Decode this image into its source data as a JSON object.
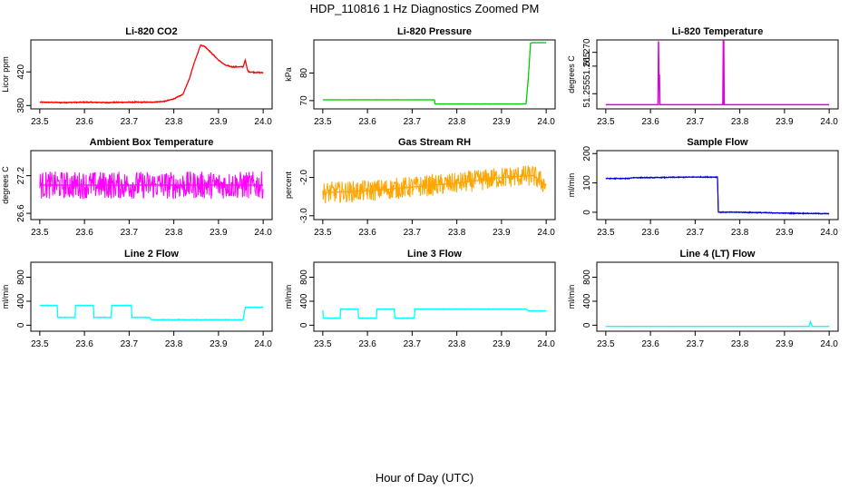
{
  "figure": {
    "title": "HDP_110816  1 Hz Diagnostics Zoomed PM",
    "xlabel": "Hour of Day (UTC)"
  },
  "chart_data": [
    {
      "id": "co2",
      "type": "line",
      "title": "Li-820 CO2",
      "ylabel": "Licor ppm",
      "xlim": [
        23.48,
        24.02
      ],
      "ylim": [
        376,
        458
      ],
      "xticks": [
        "23.5",
        "23.6",
        "23.7",
        "23.8",
        "23.9",
        "24.0"
      ],
      "yticks": [
        {
          "v": 380,
          "label": "380"
        },
        {
          "v": 420,
          "label": "420"
        }
      ],
      "color": "#ff0000",
      "noise": 0.8,
      "x": [
        23.5,
        23.55,
        23.6,
        23.65,
        23.7,
        23.75,
        23.78,
        23.8,
        23.82,
        23.835,
        23.845,
        23.86,
        23.87,
        23.885,
        23.9,
        23.915,
        23.93,
        23.94,
        23.955,
        23.96,
        23.965,
        23.968,
        23.97,
        23.98,
        24.0
      ],
      "y": [
        384,
        383.5,
        384,
        383.5,
        384,
        384,
        385,
        388,
        393,
        412,
        430,
        452,
        450,
        442,
        434,
        428,
        426,
        426,
        426,
        434,
        422,
        420,
        420,
        419.5,
        419
      ]
    },
    {
      "id": "pressure",
      "type": "line",
      "title": "Li-820 Pressure",
      "ylabel": "kPa",
      "xlim": [
        23.48,
        24.02
      ],
      "ylim": [
        67,
        92
      ],
      "xticks": [
        "23.5",
        "23.6",
        "23.7",
        "23.8",
        "23.9",
        "24.0"
      ],
      "yticks": [
        {
          "v": 70,
          "label": "70"
        },
        {
          "v": 80,
          "label": "80"
        }
      ],
      "color": "#00cc00",
      "noise": 0.05,
      "x": [
        23.5,
        23.75,
        23.751,
        23.955,
        23.96,
        23.965,
        23.97,
        24.0
      ],
      "y": [
        70.3,
        70.3,
        68.8,
        68.8,
        78,
        90.8,
        91,
        91
      ]
    },
    {
      "id": "temperature",
      "type": "line",
      "title": "Li-820 Temperature",
      "ylabel": "degrees C",
      "xlim": [
        23.48,
        24.02
      ],
      "ylim": [
        51.2495,
        51.2745
      ],
      "xticks": [
        "23.5",
        "23.6",
        "23.7",
        "23.8",
        "23.9",
        "24.0"
      ],
      "yticks": [
        {
          "v": 51.255,
          "label": "51.255"
        },
        {
          "v": 51.265,
          "label": "51.265"
        },
        {
          "v": 51.27,
          "label": "51.270"
        }
      ],
      "color": "#dd00dd",
      "noise": 0,
      "x": [
        23.5,
        23.617,
        23.618,
        23.619,
        23.62,
        23.621,
        23.622,
        23.623,
        23.762,
        23.763,
        23.764,
        23.765,
        24.0
      ],
      "y": [
        51.251,
        51.251,
        51.274,
        51.259,
        51.262,
        51.251,
        51.251,
        51.251,
        51.251,
        51.274,
        51.274,
        51.251,
        51.251
      ]
    },
    {
      "id": "ambient",
      "type": "line",
      "title": "Ambient Box Temperature",
      "ylabel": "degrees C",
      "xlim": [
        23.48,
        24.02
      ],
      "ylim": [
        26.5,
        27.6
      ],
      "xticks": [
        "23.5",
        "23.6",
        "23.7",
        "23.8",
        "23.9",
        "24.0"
      ],
      "yticks": [
        {
          "v": 26.6,
          "label": "26.6"
        },
        {
          "v": 27.2,
          "label": "27.2"
        }
      ],
      "color": "#ff00ff",
      "noise": 0.22,
      "x": [
        23.5,
        24.0
      ],
      "y": [
        27.05,
        27.05
      ]
    },
    {
      "id": "rh",
      "type": "line",
      "title": "Gas Stream RH",
      "ylabel": "percent",
      "xlim": [
        23.48,
        24.02
      ],
      "ylim": [
        -3.1,
        -1.3
      ],
      "xticks": [
        "23.5",
        "23.6",
        "23.7",
        "23.8",
        "23.9",
        "24.0"
      ],
      "yticks": [
        {
          "v": -3.0,
          "label": "-3.0"
        },
        {
          "v": -2.0,
          "label": "-2.0"
        }
      ],
      "color": "#ffa500",
      "noise": 0.28,
      "x": [
        23.5,
        23.6,
        23.7,
        23.8,
        23.9,
        23.97,
        24.0
      ],
      "y": [
        -2.4,
        -2.35,
        -2.25,
        -2.15,
        -2.0,
        -1.95,
        -2.2
      ]
    },
    {
      "id": "sample",
      "type": "line",
      "title": "Sample Flow",
      "ylabel": "ml/min",
      "xlim": [
        23.48,
        24.02
      ],
      "ylim": [
        -25,
        210
      ],
      "xticks": [
        "23.5",
        "23.6",
        "23.7",
        "23.8",
        "23.9",
        "24.0"
      ],
      "yticks": [
        {
          "v": 0,
          "label": "0"
        },
        {
          "v": 100,
          "label": "100"
        },
        {
          "v": 200,
          "label": "200"
        }
      ],
      "color": "#0000dd",
      "noise": 2,
      "x": [
        23.5,
        23.55,
        23.56,
        23.6,
        23.7,
        23.75,
        23.752,
        23.8,
        23.9,
        24.0
      ],
      "y": [
        115,
        115,
        118,
        118,
        120,
        120,
        0,
        0,
        -3,
        -5
      ]
    },
    {
      "id": "line2",
      "type": "line",
      "title": "Line 2 Flow",
      "ylabel": "ml/min",
      "xlim": [
        23.48,
        24.02
      ],
      "ylim": [
        -100,
        1050
      ],
      "xticks": [
        "23.5",
        "23.6",
        "23.7",
        "23.8",
        "23.9",
        "24.0"
      ],
      "yticks": [
        {
          "v": 0,
          "label": "0"
        },
        {
          "v": 400,
          "label": "400"
        },
        {
          "v": 800,
          "label": "800"
        }
      ],
      "color": "#00ffff",
      "noise": 8,
      "x": [
        23.5,
        23.539,
        23.54,
        23.579,
        23.58,
        23.62,
        23.621,
        23.66,
        23.661,
        23.705,
        23.706,
        23.745,
        23.75,
        23.955,
        23.96,
        24.0
      ],
      "y": [
        330,
        330,
        130,
        130,
        330,
        330,
        130,
        130,
        330,
        330,
        130,
        130,
        90,
        90,
        300,
        300
      ]
    },
    {
      "id": "line3",
      "type": "line",
      "title": "Line 3 Flow",
      "ylabel": "ml/min",
      "xlim": [
        23.48,
        24.02
      ],
      "ylim": [
        -100,
        1050
      ],
      "xticks": [
        "23.5",
        "23.6",
        "23.7",
        "23.8",
        "23.9",
        "24.0"
      ],
      "yticks": [
        {
          "v": 0,
          "label": "0"
        },
        {
          "v": 400,
          "label": "400"
        },
        {
          "v": 800,
          "label": "800"
        }
      ],
      "color": "#00ffff",
      "noise": 5,
      "x": [
        23.5,
        23.501,
        23.539,
        23.54,
        23.579,
        23.58,
        23.62,
        23.621,
        23.66,
        23.661,
        23.705,
        23.706,
        23.955,
        23.96,
        24.0
      ],
      "y": [
        250,
        120,
        120,
        270,
        270,
        120,
        120,
        270,
        270,
        120,
        120,
        270,
        270,
        240,
        240
      ]
    },
    {
      "id": "line4",
      "type": "line",
      "title": "Line 4 (LT) Flow",
      "ylabel": "ml/min",
      "xlim": [
        23.48,
        24.02
      ],
      "ylim": [
        -100,
        1050
      ],
      "xticks": [
        "23.5",
        "23.6",
        "23.7",
        "23.8",
        "23.9",
        "24.0"
      ],
      "yticks": [
        {
          "v": 0,
          "label": "0"
        },
        {
          "v": 400,
          "label": "400"
        },
        {
          "v": 800,
          "label": "800"
        }
      ],
      "color": "#00ffff",
      "noise": 3,
      "x": [
        23.5,
        23.955,
        23.958,
        23.962,
        23.965,
        24.0
      ],
      "y": [
        -20,
        -20,
        60,
        -20,
        -20,
        -20
      ]
    }
  ]
}
